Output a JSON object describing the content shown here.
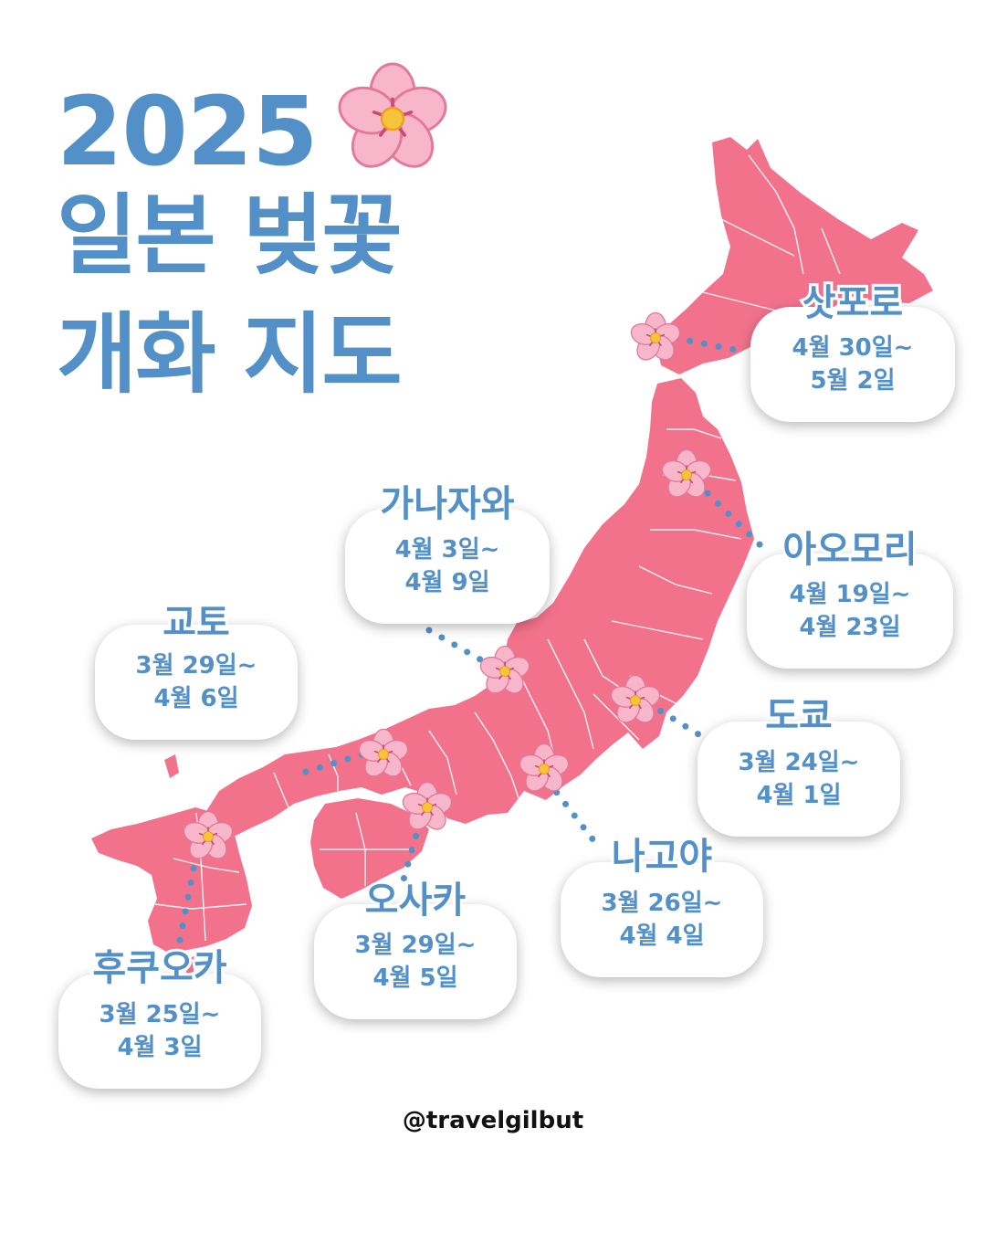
{
  "title": {
    "year": "2025",
    "line1": "일본 벚꽃",
    "line2": "개화 지도"
  },
  "icons": {
    "flower": "cherry-blossom-icon"
  },
  "colors": {
    "accent": "#5490c8",
    "land": "#f2728c",
    "border": "#ffffff",
    "dots": "#5490c8",
    "blossom": "#f7b6c9"
  },
  "cities": [
    {
      "name": "삿포로",
      "date1": "4월 30일~",
      "date2": "5월 2일"
    },
    {
      "name": "아오모리",
      "date1": "4월 19일~",
      "date2": "4월 23일"
    },
    {
      "name": "가나자와",
      "date1": "4월 3일~",
      "date2": "4월 9일"
    },
    {
      "name": "교토",
      "date1": "3월 29일~",
      "date2": "4월 6일"
    },
    {
      "name": "도쿄",
      "date1": "3월 24일~",
      "date2": "4월 1일"
    },
    {
      "name": "나고야",
      "date1": "3월 26일~",
      "date2": "4월 4일"
    },
    {
      "name": "오사카",
      "date1": "3월 29일~",
      "date2": "4월 5일"
    },
    {
      "name": "후쿠오카",
      "date1": "3월 25일~",
      "date2": "4월 3일"
    }
  ],
  "credit": "@travelgilbut"
}
